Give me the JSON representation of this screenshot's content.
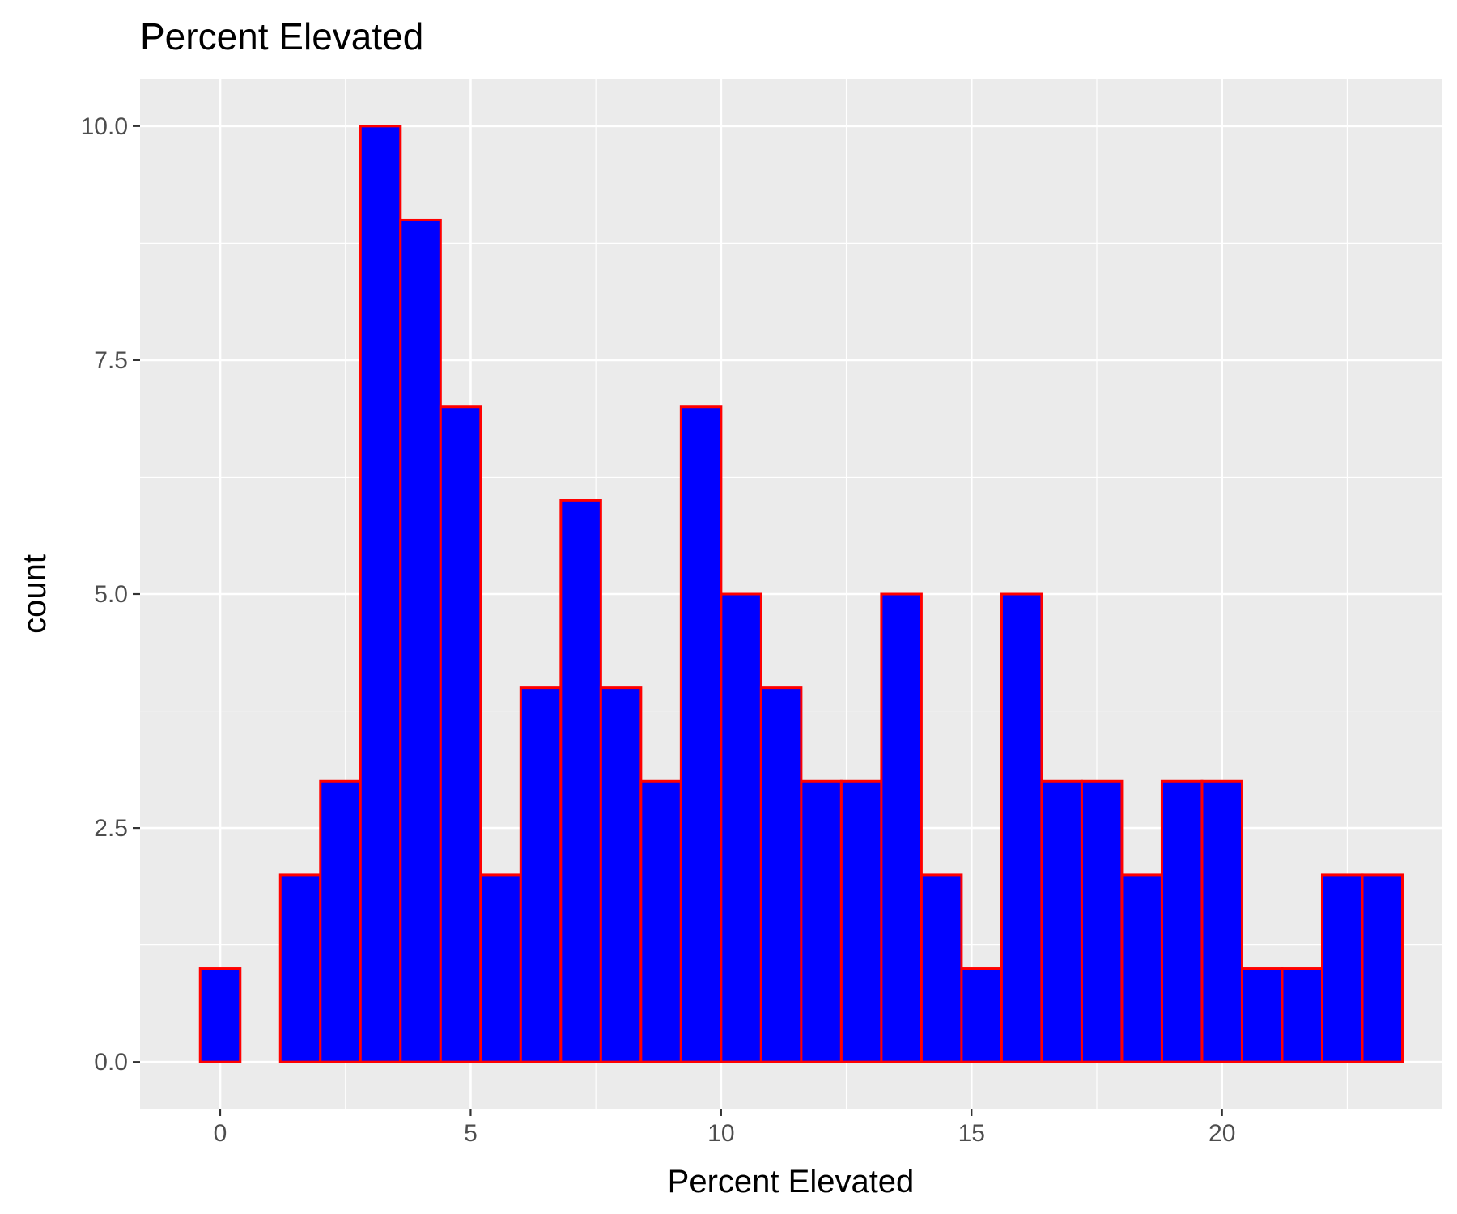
{
  "chart_data": {
    "type": "bar",
    "title": "Percent Elevated",
    "xlabel": "Percent Elevated",
    "ylabel": "count",
    "bin_width": 0.8,
    "bins": [
      {
        "center": 0.0,
        "count": 1
      },
      {
        "center": 0.8,
        "count": 0
      },
      {
        "center": 1.6,
        "count": 2
      },
      {
        "center": 2.4,
        "count": 3
      },
      {
        "center": 3.2,
        "count": 10
      },
      {
        "center": 4.0,
        "count": 9
      },
      {
        "center": 4.8,
        "count": 7
      },
      {
        "center": 5.6,
        "count": 2
      },
      {
        "center": 6.4,
        "count": 4
      },
      {
        "center": 7.2,
        "count": 6
      },
      {
        "center": 8.0,
        "count": 4
      },
      {
        "center": 8.8,
        "count": 3
      },
      {
        "center": 9.6,
        "count": 7
      },
      {
        "center": 10.4,
        "count": 5
      },
      {
        "center": 11.2,
        "count": 4
      },
      {
        "center": 12.0,
        "count": 3
      },
      {
        "center": 12.8,
        "count": 3
      },
      {
        "center": 13.6,
        "count": 5
      },
      {
        "center": 14.4,
        "count": 2
      },
      {
        "center": 15.2,
        "count": 1
      },
      {
        "center": 16.0,
        "count": 5
      },
      {
        "center": 16.8,
        "count": 3
      },
      {
        "center": 17.6,
        "count": 3
      },
      {
        "center": 18.4,
        "count": 2
      },
      {
        "center": 19.2,
        "count": 3
      },
      {
        "center": 20.0,
        "count": 3
      },
      {
        "center": 20.8,
        "count": 1
      },
      {
        "center": 21.6,
        "count": 1
      },
      {
        "center": 22.4,
        "count": 2
      },
      {
        "center": 23.2,
        "count": 2
      }
    ],
    "xticks": [
      0,
      5,
      10,
      15,
      20
    ],
    "xtick_labels": [
      "0",
      "5",
      "10",
      "15",
      "20"
    ],
    "yticks": [
      0,
      2.5,
      5,
      7.5,
      10
    ],
    "ytick_labels": [
      "0.0",
      "2.5",
      "5.0",
      "7.5",
      "10.0"
    ],
    "xlim": [
      -1.6,
      24.4
    ],
    "ylim": [
      -0.5,
      10.5
    ],
    "grid": true,
    "legend": "none",
    "colors": {
      "fill": "#0000FF",
      "outline": "#FF0000",
      "panel": "#EBEBEB",
      "grid": "#FFFFFF",
      "tick_text": "#4D4D4D",
      "tick_mark": "#333333"
    }
  }
}
